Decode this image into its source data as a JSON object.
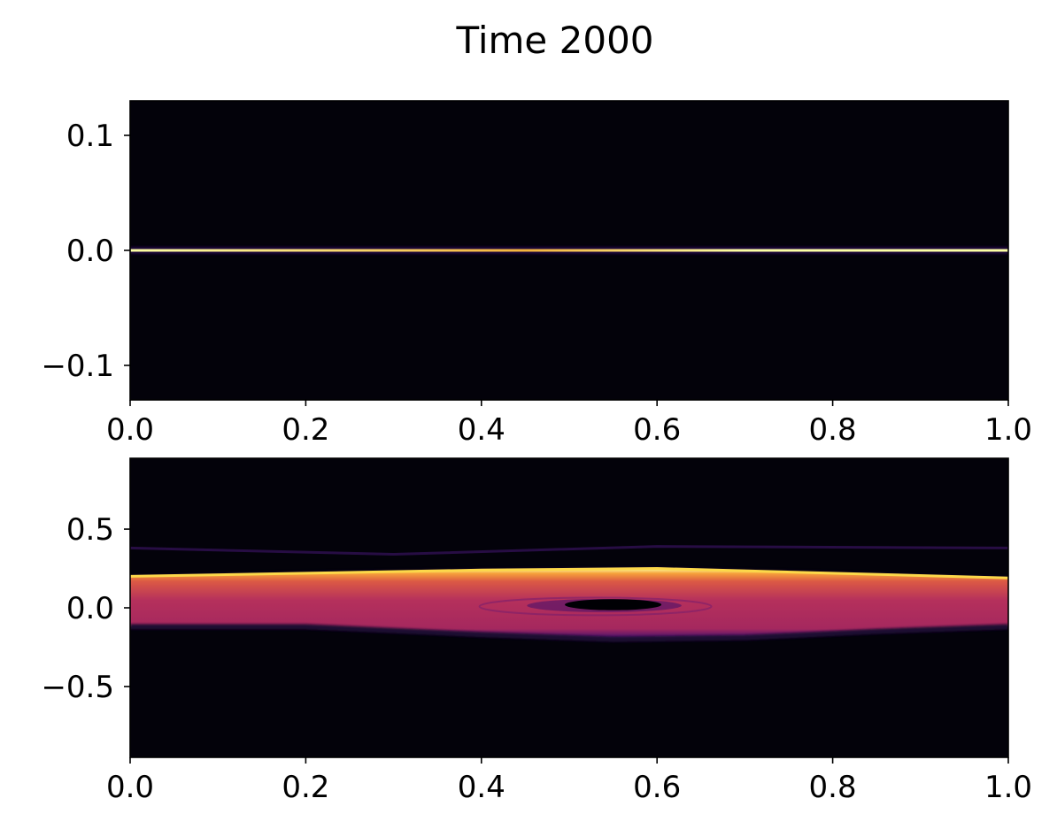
{
  "figure": {
    "title": "Time 2000"
  },
  "chart_data": [
    {
      "type": "heatmap",
      "colormap": "inferno",
      "xlim": [
        0.0,
        1.0
      ],
      "ylim": [
        -0.13,
        0.13
      ],
      "x_ticks": [
        0.0,
        0.2,
        0.4,
        0.6,
        0.8,
        1.0
      ],
      "x_tick_labels": [
        "0.0",
        "0.2",
        "0.4",
        "0.6",
        "0.8",
        "1.0"
      ],
      "y_ticks": [
        0.1,
        0.0,
        -0.1
      ],
      "y_tick_labels": [
        "0.1",
        "0.0",
        "−0.1"
      ],
      "background_color": "#03020a",
      "features": [
        {
          "kind": "thin-bright-band",
          "y_center": 0.0,
          "half_width": 0.002,
          "peak_color": "#fcffa4"
        }
      ]
    },
    {
      "type": "heatmap",
      "colormap": "inferno",
      "xlim": [
        0.0,
        1.0
      ],
      "ylim": [
        -0.95,
        0.95
      ],
      "x_ticks": [
        0.0,
        0.2,
        0.4,
        0.6,
        0.8,
        1.0
      ],
      "x_tick_labels": [
        "0.0",
        "0.2",
        "0.4",
        "0.6",
        "0.8",
        "1.0"
      ],
      "y_ticks": [
        0.5,
        0.0,
        -0.5
      ],
      "y_tick_labels": [
        "0.5",
        "0.0",
        "−0.5"
      ],
      "background_color": "#03020a",
      "features": [
        {
          "kind": "wavy-band",
          "upper_edge": [
            [
              0.0,
              0.2
            ],
            [
              0.2,
              0.22
            ],
            [
              0.4,
              0.24
            ],
            [
              0.6,
              0.25
            ],
            [
              0.8,
              0.22
            ],
            [
              1.0,
              0.19
            ]
          ],
          "lower_edge": [
            [
              0.0,
              -0.12
            ],
            [
              0.2,
              -0.12
            ],
            [
              0.4,
              -0.17
            ],
            [
              0.55,
              -0.2
            ],
            [
              0.7,
              -0.19
            ],
            [
              0.85,
              -0.15
            ],
            [
              1.0,
              -0.12
            ]
          ],
          "edge_color": "#fcd84a",
          "fill_color": "#b5305c"
        },
        {
          "kind": "dark-void",
          "x_center": 0.55,
          "y_center": 0.02,
          "x_radius": 0.055,
          "y_radius": 0.035
        },
        {
          "kind": "faint-line",
          "points": [
            [
              0.0,
              0.38
            ],
            [
              0.3,
              0.34
            ],
            [
              0.6,
              0.39
            ],
            [
              1.0,
              0.38
            ]
          ]
        }
      ]
    }
  ]
}
